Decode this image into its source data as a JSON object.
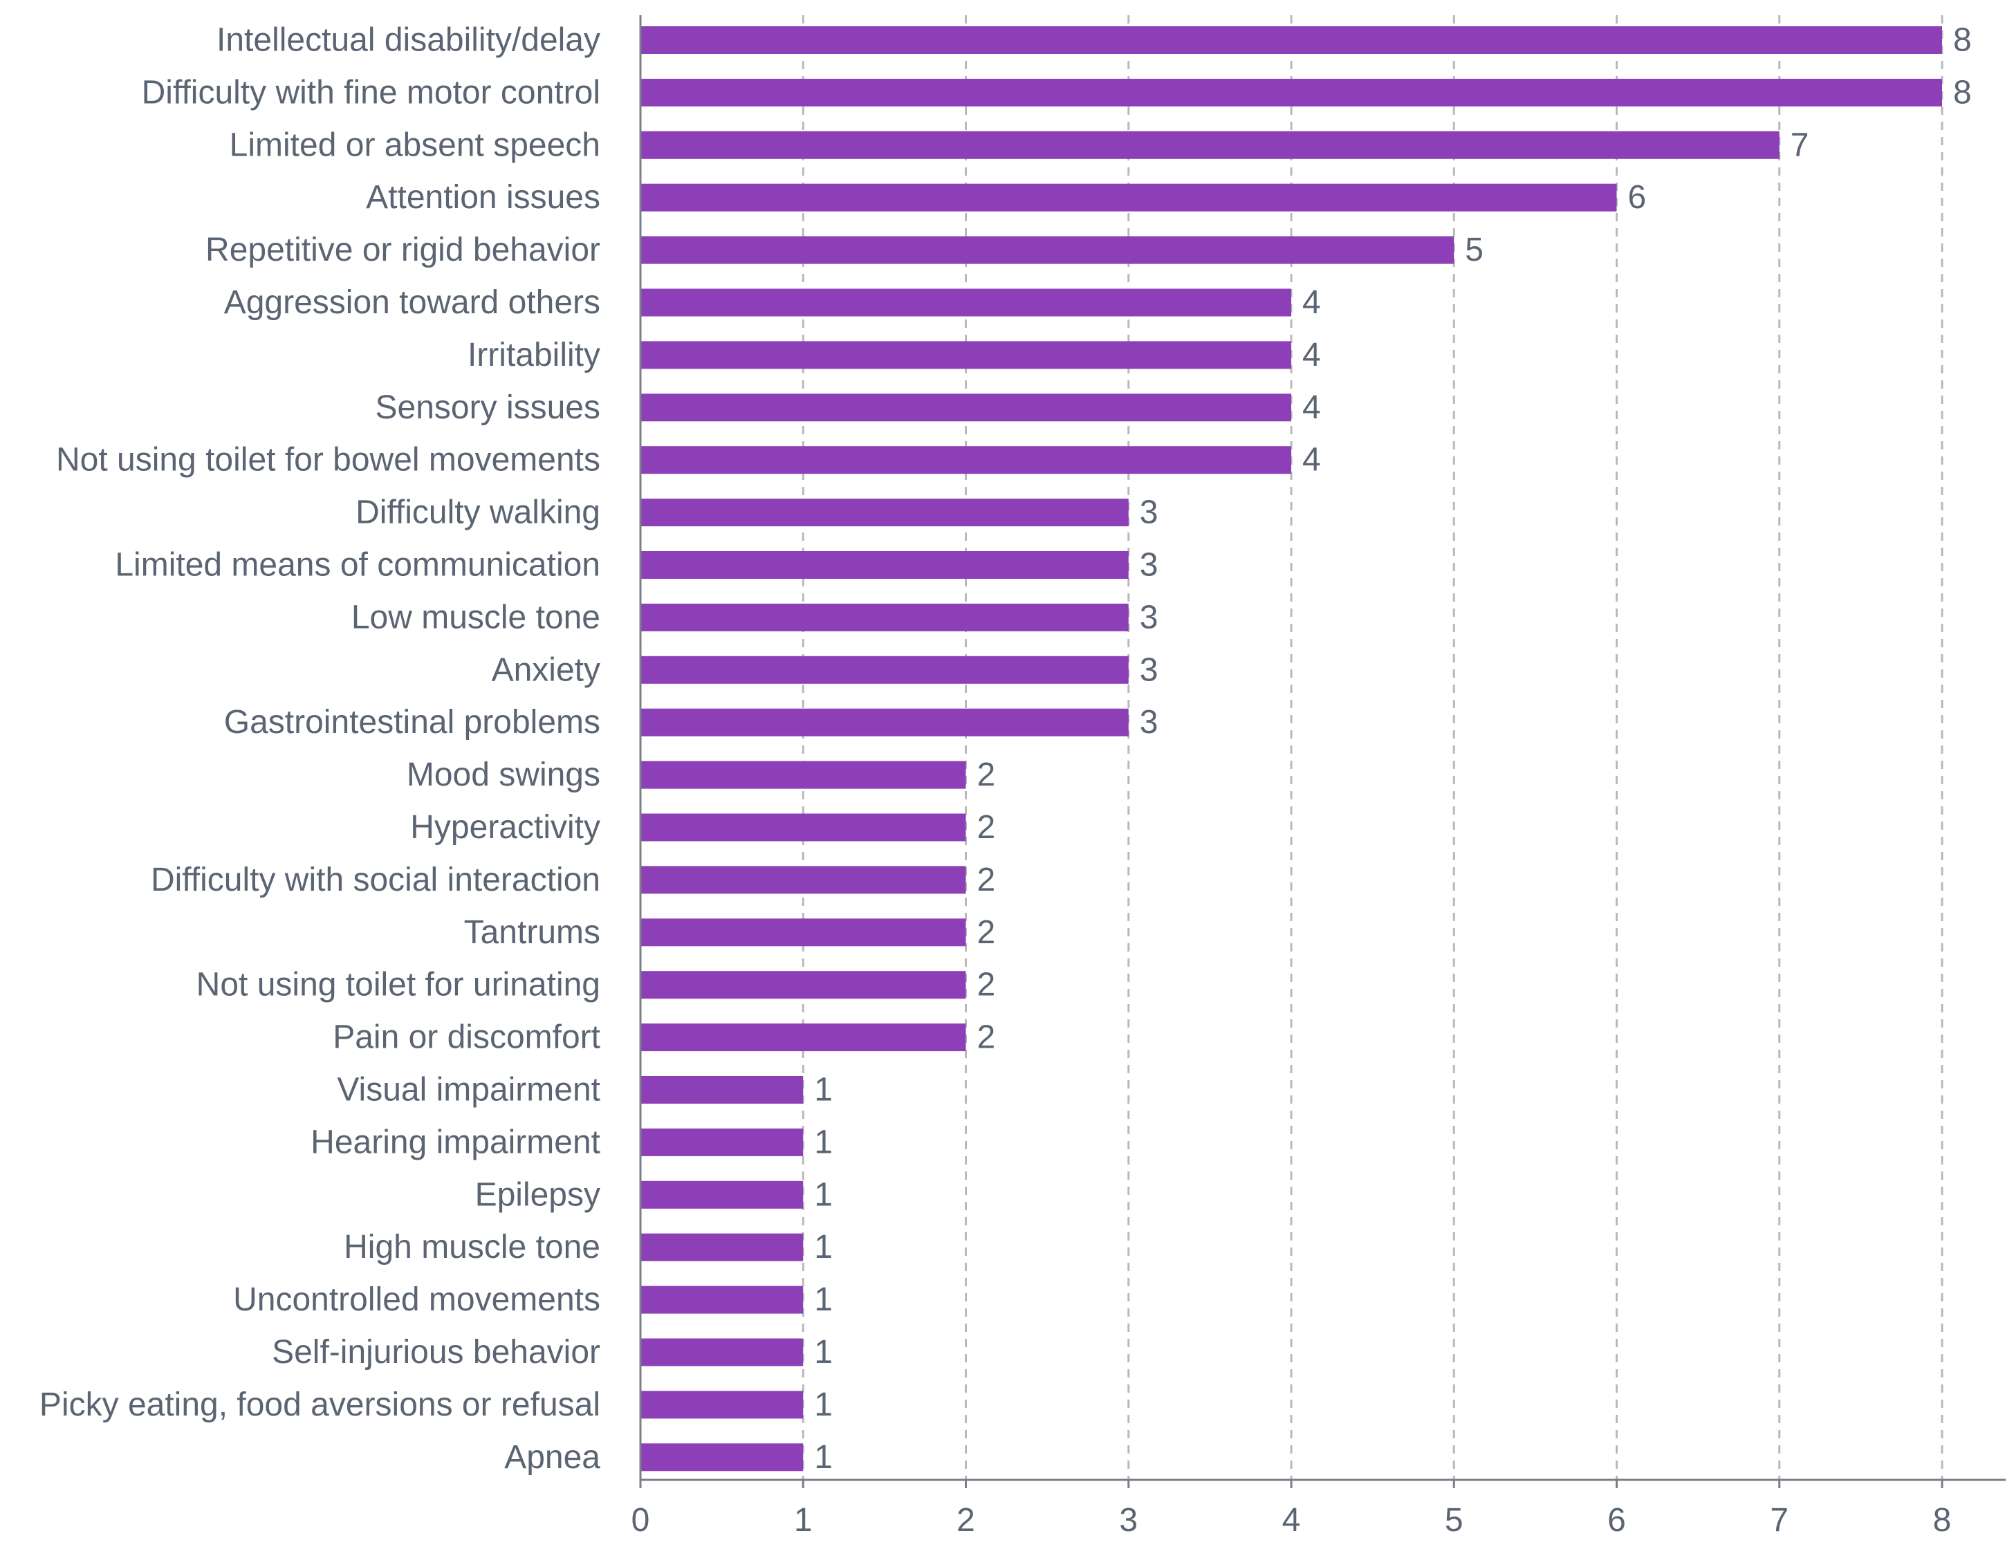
{
  "chart_data": {
    "type": "bar",
    "orientation": "horizontal",
    "categories": [
      "Intellectual disability/delay",
      "Difficulty with fine motor control",
      "Limited or absent speech",
      "Attention issues",
      "Repetitive or rigid behavior",
      "Aggression toward others",
      "Irritability",
      "Sensory issues",
      "Not using toilet for bowel movements",
      "Difficulty walking",
      "Limited means of communication",
      "Low muscle tone",
      "Anxiety",
      "Gastrointestinal problems",
      "Mood swings",
      "Hyperactivity",
      "Difficulty with social interaction",
      "Tantrums",
      "Not using toilet for urinating",
      "Pain or discomfort",
      "Visual impairment",
      "Hearing impairment",
      "Epilepsy",
      "High muscle tone",
      "Uncontrolled movements",
      "Self-injurious behavior",
      "Picky eating, food aversions or refusal",
      "Apnea"
    ],
    "values": [
      8,
      8,
      7,
      6,
      5,
      4,
      4,
      4,
      4,
      3,
      3,
      3,
      3,
      3,
      2,
      2,
      2,
      2,
      2,
      2,
      1,
      1,
      1,
      1,
      1,
      1,
      1,
      1
    ],
    "xlim": [
      0,
      8
    ],
    "xticks": [
      "0",
      "1",
      "2",
      "3",
      "4",
      "5",
      "6",
      "7",
      "8"
    ],
    "title": "",
    "xlabel": "",
    "ylabel": "",
    "grid": "vertical dashed",
    "legend": "none",
    "show_data_labels": true,
    "colors": {
      "bar": "#8c3fb7",
      "text": "#5b6472",
      "grid": "#b9b9b9",
      "axis": "#7a7f87"
    }
  }
}
